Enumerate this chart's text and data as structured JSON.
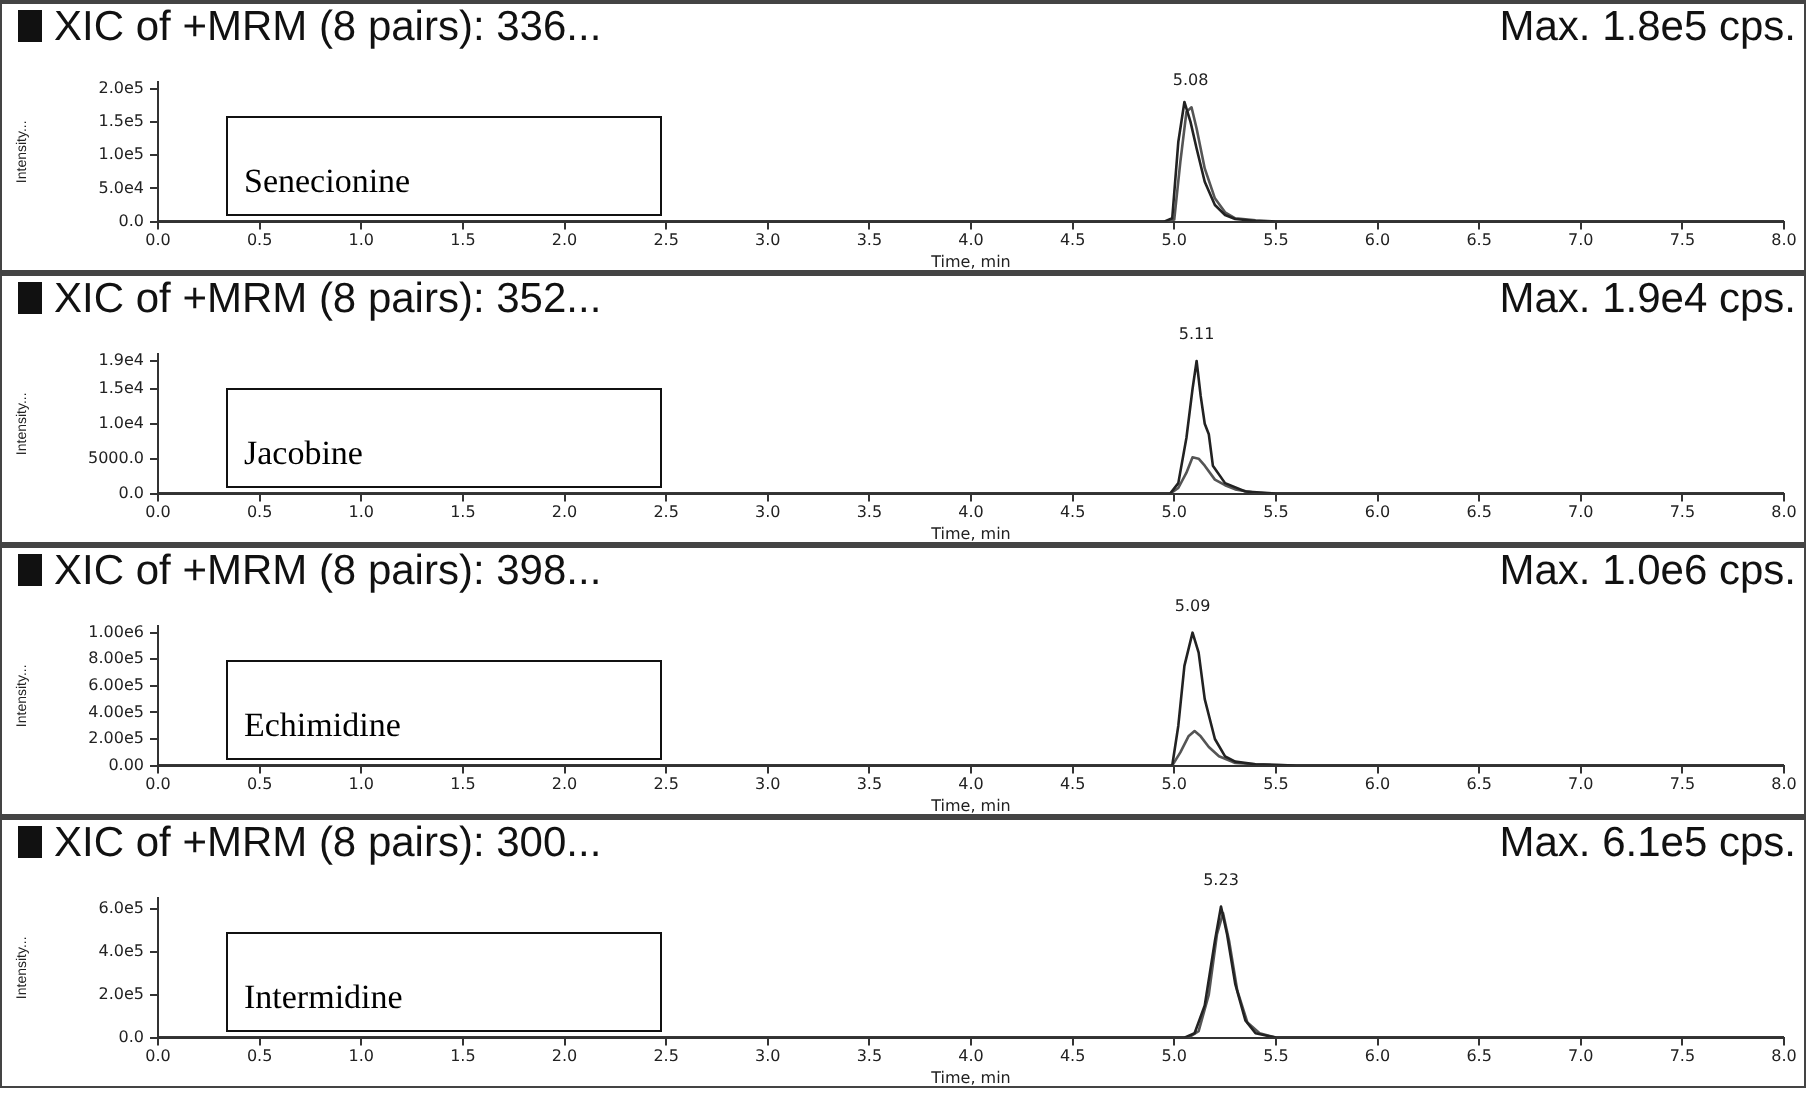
{
  "chart_data": [
    {
      "type": "line",
      "title": "XIC of +MRM (8 pairs): 336...",
      "subtitle": "Max. 1.8e5 cps.",
      "xlabel": "Time, min",
      "ylabel": "Intensity...",
      "legend": false,
      "grid": false,
      "marker": "none",
      "line_style": "solid",
      "xlim": [
        0,
        8
      ],
      "xticks": [
        {
          "value": 0,
          "label": "0.0"
        },
        {
          "value": 0.5,
          "label": "0.5"
        },
        {
          "value": 1,
          "label": "1.0"
        },
        {
          "value": 1.5,
          "label": "1.5"
        },
        {
          "value": 2,
          "label": "2.0"
        },
        {
          "value": 2.5,
          "label": "2.5"
        },
        {
          "value": 3,
          "label": "3.0"
        },
        {
          "value": 3.5,
          "label": "3.5"
        },
        {
          "value": 4,
          "label": "4.0"
        },
        {
          "value": 4.5,
          "label": "4.5"
        },
        {
          "value": 5,
          "label": "5.0"
        },
        {
          "value": 5.5,
          "label": "5.5"
        },
        {
          "value": 6,
          "label": "6.0"
        },
        {
          "value": 6.5,
          "label": "6.5"
        },
        {
          "value": 7,
          "label": "7.0"
        },
        {
          "value": 7.5,
          "label": "7.5"
        },
        {
          "value": 8,
          "label": "8.0"
        }
      ],
      "ylim": [
        0,
        210000
      ],
      "yticks": [
        {
          "value": 0,
          "label": "0.0"
        },
        {
          "value": 50000,
          "label": "5.0e4"
        },
        {
          "value": 100000,
          "label": "1.0e5"
        },
        {
          "value": 150000,
          "label": "1.5e5"
        },
        {
          "value": 200000,
          "label": "2.0e5"
        }
      ],
      "series": [
        {
          "color": "#222222",
          "x": [
            0,
            4.95,
            4.99,
            5.02,
            5.05,
            5.08,
            5.11,
            5.15,
            5.2,
            5.25,
            5.3,
            5.4,
            5.5,
            8
          ],
          "values": [
            0,
            0,
            5000,
            120000,
            180000,
            150000,
            110000,
            60000,
            25000,
            10000,
            4000,
            1000,
            0,
            0
          ]
        },
        {
          "color": "#555555",
          "x": [
            0,
            4.97,
            5.0,
            5.03,
            5.06,
            5.085,
            5.11,
            5.15,
            5.2,
            5.25,
            5.3,
            5.4,
            5.5,
            8
          ],
          "values": [
            0,
            0,
            3000,
            90000,
            165000,
            172000,
            140000,
            80000,
            35000,
            14000,
            5000,
            2000,
            0,
            0
          ]
        }
      ],
      "annotations": [
        {
          "text": "5.08",
          "x": 5.08,
          "y": 172000
        },
        "Senecionine"
      ]
    },
    {
      "type": "line",
      "title": "XIC of +MRM (8 pairs): 352...",
      "subtitle": "Max. 1.9e4 cps.",
      "xlabel": "Time, min",
      "ylabel": "Intensity...",
      "legend": false,
      "grid": false,
      "marker": "none",
      "line_style": "solid",
      "xlim": [
        0,
        8
      ],
      "xticks": [
        {
          "value": 0,
          "label": "0.0"
        },
        {
          "value": 0.5,
          "label": "0.5"
        },
        {
          "value": 1,
          "label": "1.0"
        },
        {
          "value": 1.5,
          "label": "1.5"
        },
        {
          "value": 2,
          "label": "2.0"
        },
        {
          "value": 2.5,
          "label": "2.5"
        },
        {
          "value": 3,
          "label": "3.0"
        },
        {
          "value": 3.5,
          "label": "3.5"
        },
        {
          "value": 4,
          "label": "4.0"
        },
        {
          "value": 4.5,
          "label": "4.5"
        },
        {
          "value": 5,
          "label": "5.0"
        },
        {
          "value": 5.5,
          "label": "5.5"
        },
        {
          "value": 6,
          "label": "6.0"
        },
        {
          "value": 6.5,
          "label": "6.5"
        },
        {
          "value": 7,
          "label": "7.0"
        },
        {
          "value": 7.5,
          "label": "7.5"
        },
        {
          "value": 8,
          "label": "8.0"
        }
      ],
      "ylim": [
        0,
        20000
      ],
      "yticks": [
        {
          "value": 0,
          "label": "0.0"
        },
        {
          "value": 5000,
          "label": "5000.0"
        },
        {
          "value": 10000,
          "label": "1.0e4"
        },
        {
          "value": 15000,
          "label": "1.5e4"
        },
        {
          "value": 19000,
          "label": "1.9e4"
        }
      ],
      "series": [
        {
          "color": "#222222",
          "x": [
            0,
            4.98,
            5.02,
            5.06,
            5.09,
            5.11,
            5.13,
            5.15,
            5.17,
            5.19,
            5.25,
            5.35,
            5.5,
            8
          ],
          "values": [
            0,
            0,
            1500,
            8000,
            15000,
            19000,
            14000,
            10000,
            8500,
            4000,
            1500,
            300,
            0,
            0
          ]
        },
        {
          "color": "#555555",
          "x": [
            0,
            4.98,
            5.02,
            5.06,
            5.09,
            5.12,
            5.15,
            5.2,
            5.25,
            5.3,
            5.4,
            5.5,
            8
          ],
          "values": [
            0,
            0,
            800,
            3000,
            5200,
            5000,
            4000,
            2000,
            1200,
            600,
            100,
            0,
            0
          ]
        }
      ],
      "annotations": [
        {
          "text": "5.11",
          "x": 5.11,
          "y": 19000
        },
        "Jacobine"
      ]
    },
    {
      "type": "line",
      "title": "XIC of +MRM (8 pairs): 398...",
      "subtitle": "Max. 1.0e6 cps.",
      "xlabel": "Time, min",
      "ylabel": "Intensity...",
      "legend": false,
      "grid": false,
      "marker": "none",
      "line_style": "solid",
      "xlim": [
        0,
        8
      ],
      "xticks": [
        {
          "value": 0,
          "label": "0.0"
        },
        {
          "value": 0.5,
          "label": "0.5"
        },
        {
          "value": 1,
          "label": "1.0"
        },
        {
          "value": 1.5,
          "label": "1.5"
        },
        {
          "value": 2,
          "label": "2.0"
        },
        {
          "value": 2.5,
          "label": "2.5"
        },
        {
          "value": 3,
          "label": "3.0"
        },
        {
          "value": 3.5,
          "label": "3.5"
        },
        {
          "value": 4,
          "label": "4.0"
        },
        {
          "value": 4.5,
          "label": "4.5"
        },
        {
          "value": 5,
          "label": "5.0"
        },
        {
          "value": 5.5,
          "label": "5.5"
        },
        {
          "value": 6,
          "label": "6.0"
        },
        {
          "value": 6.5,
          "label": "6.5"
        },
        {
          "value": 7,
          "label": "7.0"
        },
        {
          "value": 7.5,
          "label": "7.5"
        },
        {
          "value": 8,
          "label": "8.0"
        }
      ],
      "ylim": [
        0,
        1050000
      ],
      "yticks": [
        {
          "value": 0,
          "label": "0.00"
        },
        {
          "value": 200000,
          "label": "2.00e5"
        },
        {
          "value": 400000,
          "label": "4.00e5"
        },
        {
          "value": 600000,
          "label": "6.00e5"
        },
        {
          "value": 800000,
          "label": "8.00e5"
        },
        {
          "value": 1000000,
          "label": "1.00e6"
        }
      ],
      "series": [
        {
          "color": "#222222",
          "x": [
            0,
            4.99,
            5.02,
            5.05,
            5.09,
            5.12,
            5.15,
            5.2,
            5.25,
            5.3,
            5.4,
            5.6,
            5.9,
            8
          ],
          "values": [
            0,
            0,
            300000,
            750000,
            1000000,
            850000,
            500000,
            200000,
            70000,
            30000,
            10000,
            0,
            0,
            0
          ]
        },
        {
          "color": "#555555",
          "x": [
            0,
            4.99,
            5.03,
            5.07,
            5.1,
            5.13,
            5.17,
            5.22,
            5.3,
            5.4,
            5.6,
            8
          ],
          "values": [
            0,
            0,
            100000,
            220000,
            260000,
            220000,
            140000,
            70000,
            20000,
            10000,
            0,
            0
          ]
        }
      ],
      "annotations": [
        {
          "text": "5.09",
          "x": 5.09,
          "y": 1000000
        },
        "Echimidine"
      ]
    },
    {
      "type": "line",
      "title": "XIC of +MRM (8 pairs): 300...",
      "subtitle": "Max. 6.1e5 cps.",
      "xlabel": "Time, min",
      "ylabel": "Intensity...",
      "legend": false,
      "grid": false,
      "marker": "none",
      "line_style": "solid",
      "xlim": [
        0,
        8
      ],
      "xticks": [
        {
          "value": 0,
          "label": "0.0"
        },
        {
          "value": 0.5,
          "label": "0.5"
        },
        {
          "value": 1,
          "label": "1.0"
        },
        {
          "value": 1.5,
          "label": "1.5"
        },
        {
          "value": 2,
          "label": "2.0"
        },
        {
          "value": 2.5,
          "label": "2.5"
        },
        {
          "value": 3,
          "label": "3.0"
        },
        {
          "value": 3.5,
          "label": "3.5"
        },
        {
          "value": 4,
          "label": "4.0"
        },
        {
          "value": 4.5,
          "label": "4.5"
        },
        {
          "value": 5,
          "label": "5.0"
        },
        {
          "value": 5.5,
          "label": "5.5"
        },
        {
          "value": 6,
          "label": "6.0"
        },
        {
          "value": 6.5,
          "label": "6.5"
        },
        {
          "value": 7,
          "label": "7.0"
        },
        {
          "value": 7.5,
          "label": "7.5"
        },
        {
          "value": 8,
          "label": "8.0"
        }
      ],
      "ylim": [
        0,
        650000
      ],
      "yticks": [
        {
          "value": 0,
          "label": "0.0"
        },
        {
          "value": 200000,
          "label": "2.0e5"
        },
        {
          "value": 400000,
          "label": "4.0e5"
        },
        {
          "value": 600000,
          "label": "6.0e5"
        }
      ],
      "series": [
        {
          "color": "#222222",
          "x": [
            0,
            5.05,
            5.1,
            5.15,
            5.2,
            5.23,
            5.26,
            5.3,
            5.35,
            5.4,
            5.5,
            5.6,
            8
          ],
          "values": [
            0,
            0,
            20000,
            150000,
            450000,
            610000,
            480000,
            250000,
            80000,
            20000,
            0,
            0,
            0
          ]
        },
        {
          "color": "#555555",
          "x": [
            0,
            5.07,
            5.12,
            5.17,
            5.21,
            5.24,
            5.27,
            5.31,
            5.36,
            5.42,
            5.5,
            5.6,
            8
          ],
          "values": [
            0,
            0,
            30000,
            200000,
            480000,
            580000,
            450000,
            220000,
            70000,
            20000,
            0,
            0,
            0
          ]
        }
      ],
      "annotations": [
        {
          "text": "5.23",
          "x": 5.23,
          "y": 610000
        },
        "Intermidine"
      ]
    }
  ]
}
